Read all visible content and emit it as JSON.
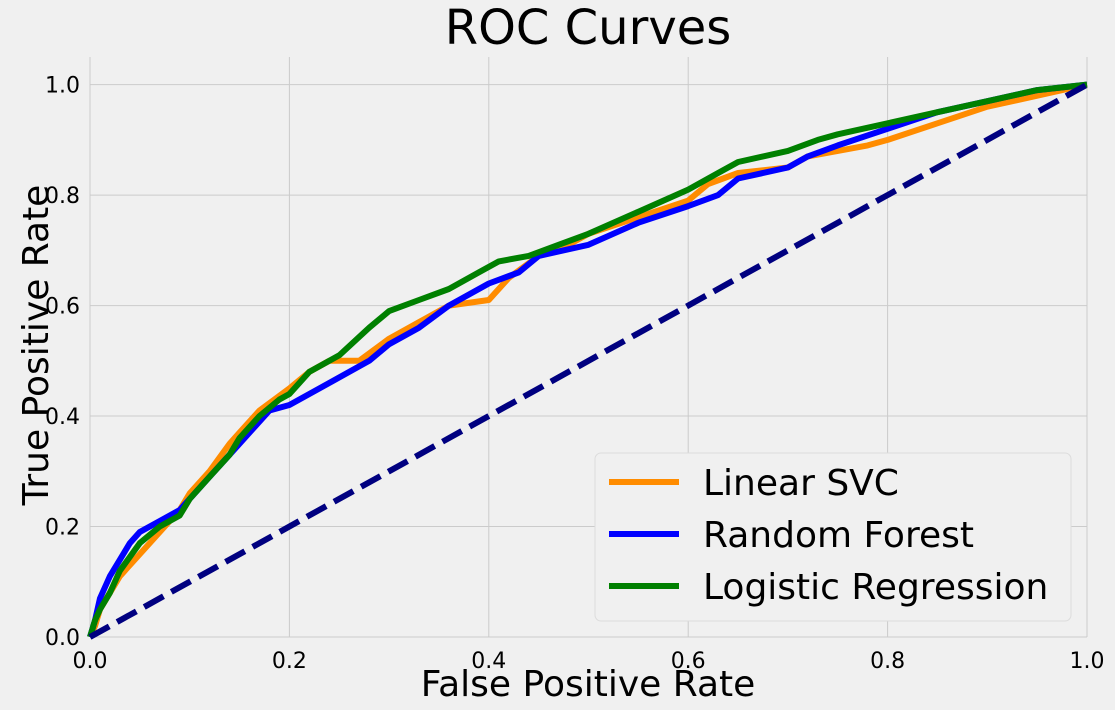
{
  "chart_data": {
    "type": "line",
    "title": "ROC Curves",
    "xlabel": "False Positive Rate",
    "ylabel": "True Positive Rate",
    "xlim": [
      0.0,
      1.0
    ],
    "ylim": [
      0.0,
      1.05
    ],
    "xticks": [
      "0.0",
      "0.2",
      "0.4",
      "0.6",
      "0.8",
      "1.0"
    ],
    "yticks": [
      "0.0",
      "0.2",
      "0.4",
      "0.6",
      "0.8",
      "1.0"
    ],
    "grid": true,
    "legend_position": "lower-right",
    "series": [
      {
        "name": "Linear SVC",
        "color": "#ff8c00",
        "x": [
          0.0,
          0.005,
          0.01,
          0.02,
          0.03,
          0.05,
          0.07,
          0.09,
          0.1,
          0.12,
          0.14,
          0.15,
          0.17,
          0.2,
          0.22,
          0.24,
          0.27,
          0.3,
          0.33,
          0.36,
          0.4,
          0.42,
          0.45,
          0.48,
          0.5,
          0.55,
          0.6,
          0.62,
          0.65,
          0.7,
          0.72,
          0.75,
          0.78,
          0.8,
          0.85,
          0.9,
          0.95,
          1.0
        ],
        "y": [
          0.0,
          0.02,
          0.05,
          0.08,
          0.11,
          0.15,
          0.19,
          0.23,
          0.26,
          0.3,
          0.35,
          0.37,
          0.41,
          0.45,
          0.48,
          0.5,
          0.5,
          0.54,
          0.57,
          0.6,
          0.61,
          0.65,
          0.69,
          0.71,
          0.73,
          0.76,
          0.79,
          0.82,
          0.84,
          0.85,
          0.87,
          0.88,
          0.89,
          0.9,
          0.93,
          0.96,
          0.98,
          1.0
        ]
      },
      {
        "name": "Random Forest",
        "color": "#0000ff",
        "x": [
          0.0,
          0.005,
          0.01,
          0.02,
          0.03,
          0.04,
          0.05,
          0.07,
          0.09,
          0.1,
          0.12,
          0.14,
          0.16,
          0.18,
          0.2,
          0.22,
          0.25,
          0.28,
          0.3,
          0.33,
          0.36,
          0.4,
          0.43,
          0.45,
          0.5,
          0.55,
          0.6,
          0.63,
          0.65,
          0.7,
          0.72,
          0.75,
          0.8,
          0.85,
          0.9,
          0.95,
          1.0
        ],
        "y": [
          0.0,
          0.03,
          0.07,
          0.11,
          0.14,
          0.17,
          0.19,
          0.21,
          0.23,
          0.25,
          0.29,
          0.33,
          0.37,
          0.41,
          0.42,
          0.44,
          0.47,
          0.5,
          0.53,
          0.56,
          0.6,
          0.64,
          0.66,
          0.69,
          0.71,
          0.75,
          0.78,
          0.8,
          0.83,
          0.85,
          0.87,
          0.89,
          0.92,
          0.95,
          0.97,
          0.99,
          1.0
        ]
      },
      {
        "name": "Logistic Regression",
        "color": "#008000",
        "x": [
          0.0,
          0.005,
          0.01,
          0.02,
          0.03,
          0.05,
          0.07,
          0.09,
          0.1,
          0.12,
          0.14,
          0.15,
          0.17,
          0.19,
          0.2,
          0.22,
          0.25,
          0.28,
          0.3,
          0.33,
          0.36,
          0.39,
          0.41,
          0.44,
          0.47,
          0.5,
          0.55,
          0.6,
          0.63,
          0.65,
          0.7,
          0.73,
          0.75,
          0.8,
          0.85,
          0.9,
          0.95,
          1.0
        ],
        "y": [
          0.0,
          0.03,
          0.05,
          0.08,
          0.12,
          0.17,
          0.2,
          0.22,
          0.25,
          0.29,
          0.33,
          0.36,
          0.4,
          0.43,
          0.44,
          0.48,
          0.51,
          0.56,
          0.59,
          0.61,
          0.63,
          0.66,
          0.68,
          0.69,
          0.71,
          0.73,
          0.77,
          0.81,
          0.84,
          0.86,
          0.88,
          0.9,
          0.91,
          0.93,
          0.95,
          0.97,
          0.99,
          1.0
        ]
      },
      {
        "name": "",
        "color": "#000080",
        "dashed": true,
        "x": [
          0.0,
          1.0
        ],
        "y": [
          0.0,
          1.0
        ]
      }
    ]
  }
}
